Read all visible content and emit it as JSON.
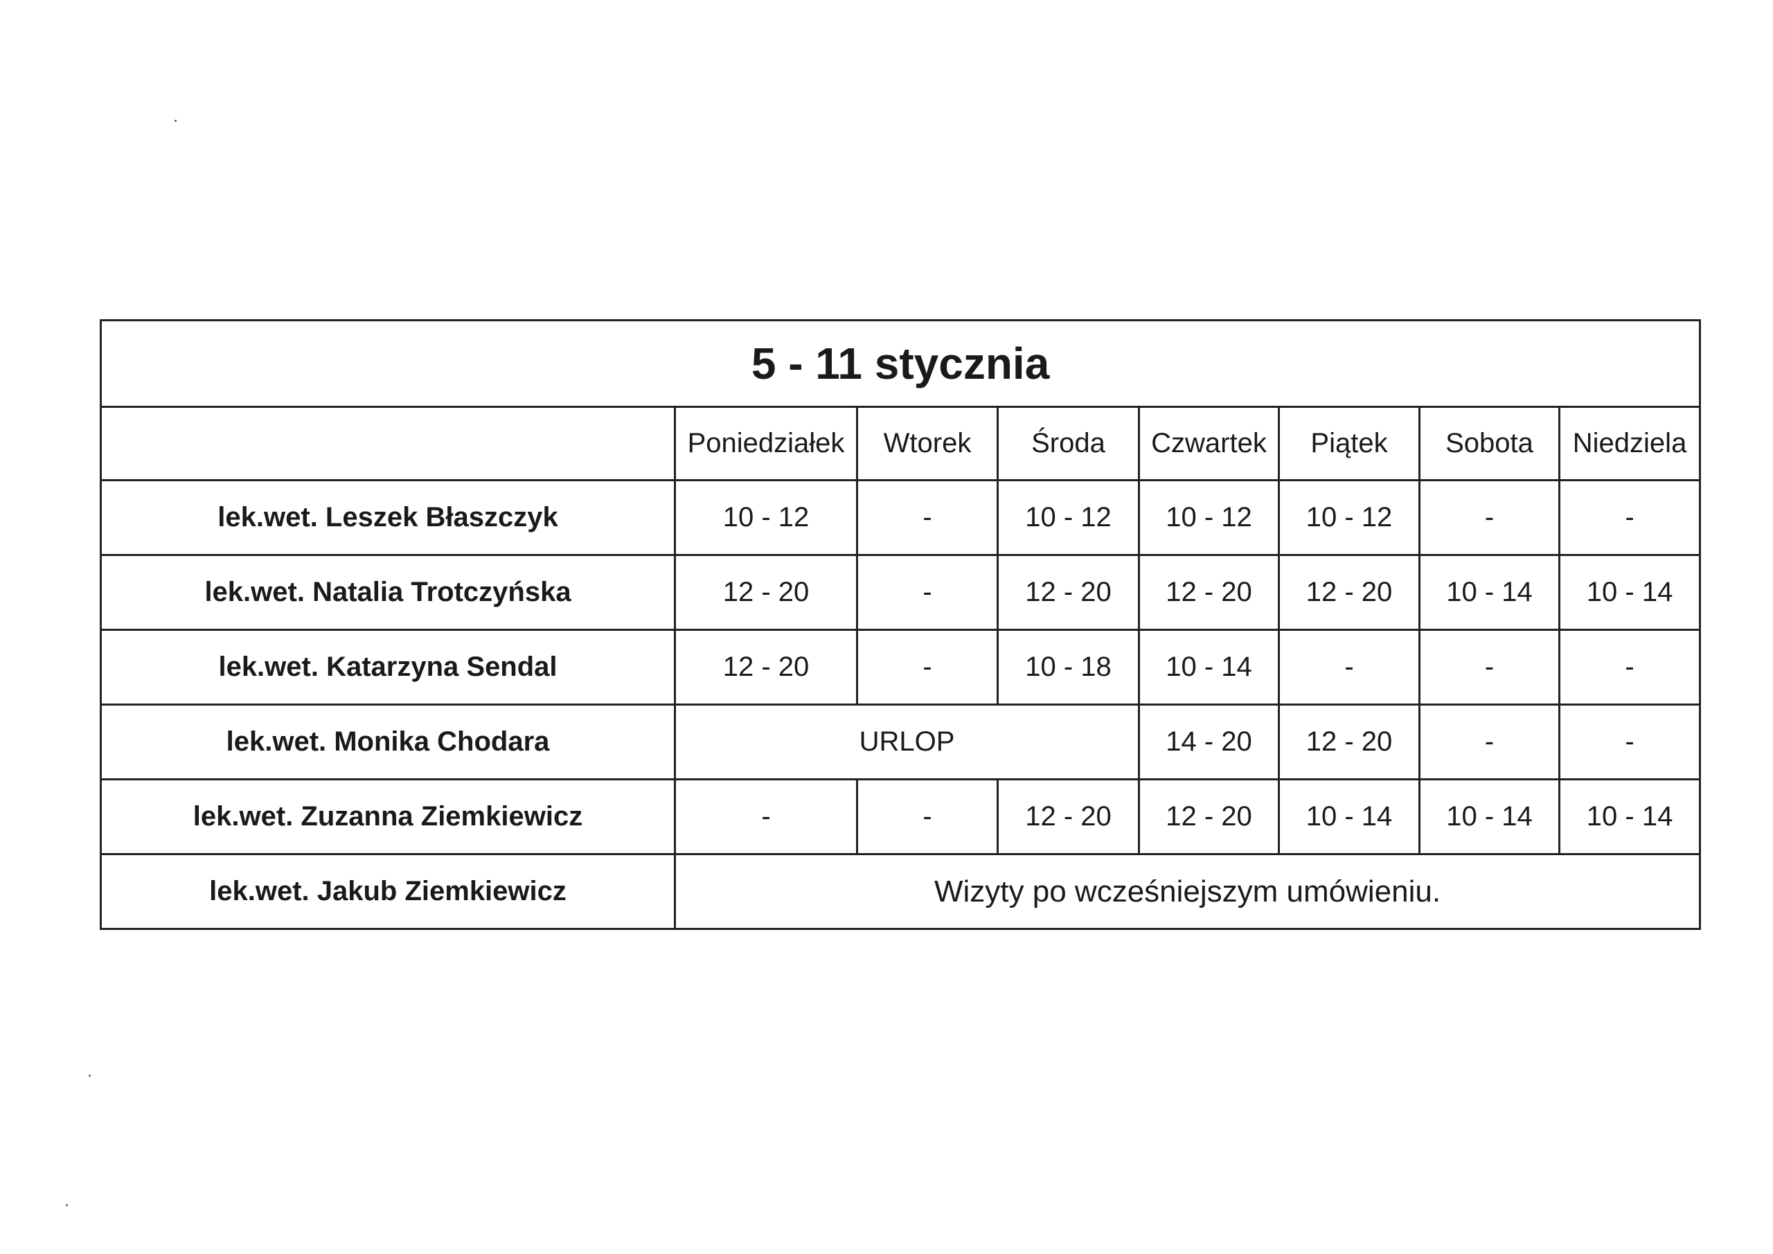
{
  "title": "5 - 11 stycznia",
  "days": [
    "Poniedziałek",
    "Wtorek",
    "Środa",
    "Czwartek",
    "Piątek",
    "Sobota",
    "Niedziela"
  ],
  "rows": [
    {
      "name": "lek.wet. Leszek Błaszczyk",
      "hours": [
        "10 - 12",
        "-",
        "10 - 12",
        "10 - 12",
        "10 - 12",
        "-",
        "-"
      ]
    },
    {
      "name": "lek.wet. Natalia Trotczyńska",
      "hours": [
        "12 - 20",
        "-",
        "12 - 20",
        "12 - 20",
        "12 - 20",
        "10 - 14",
        "10 - 14"
      ]
    },
    {
      "name": "lek.wet. Katarzyna Sendal",
      "hours": [
        "12 - 20",
        "-",
        "10 - 18",
        "10 - 14",
        "-",
        "-",
        "-"
      ]
    },
    {
      "name": "lek.wet. Monika Chodara",
      "leave": "URLOP",
      "hours": [
        "14 - 20",
        "12 - 20",
        "-",
        "-"
      ]
    },
    {
      "name": "lek.wet. Zuzanna Ziemkiewicz",
      "hours": [
        "-",
        "-",
        "12 - 20",
        "12 - 20",
        "10 - 14",
        "10 - 14",
        "10 - 14"
      ]
    },
    {
      "name": "lek.wet. Jakub Ziemkiewicz",
      "note": "Wizyty po wcześniejszym umówieniu."
    }
  ]
}
